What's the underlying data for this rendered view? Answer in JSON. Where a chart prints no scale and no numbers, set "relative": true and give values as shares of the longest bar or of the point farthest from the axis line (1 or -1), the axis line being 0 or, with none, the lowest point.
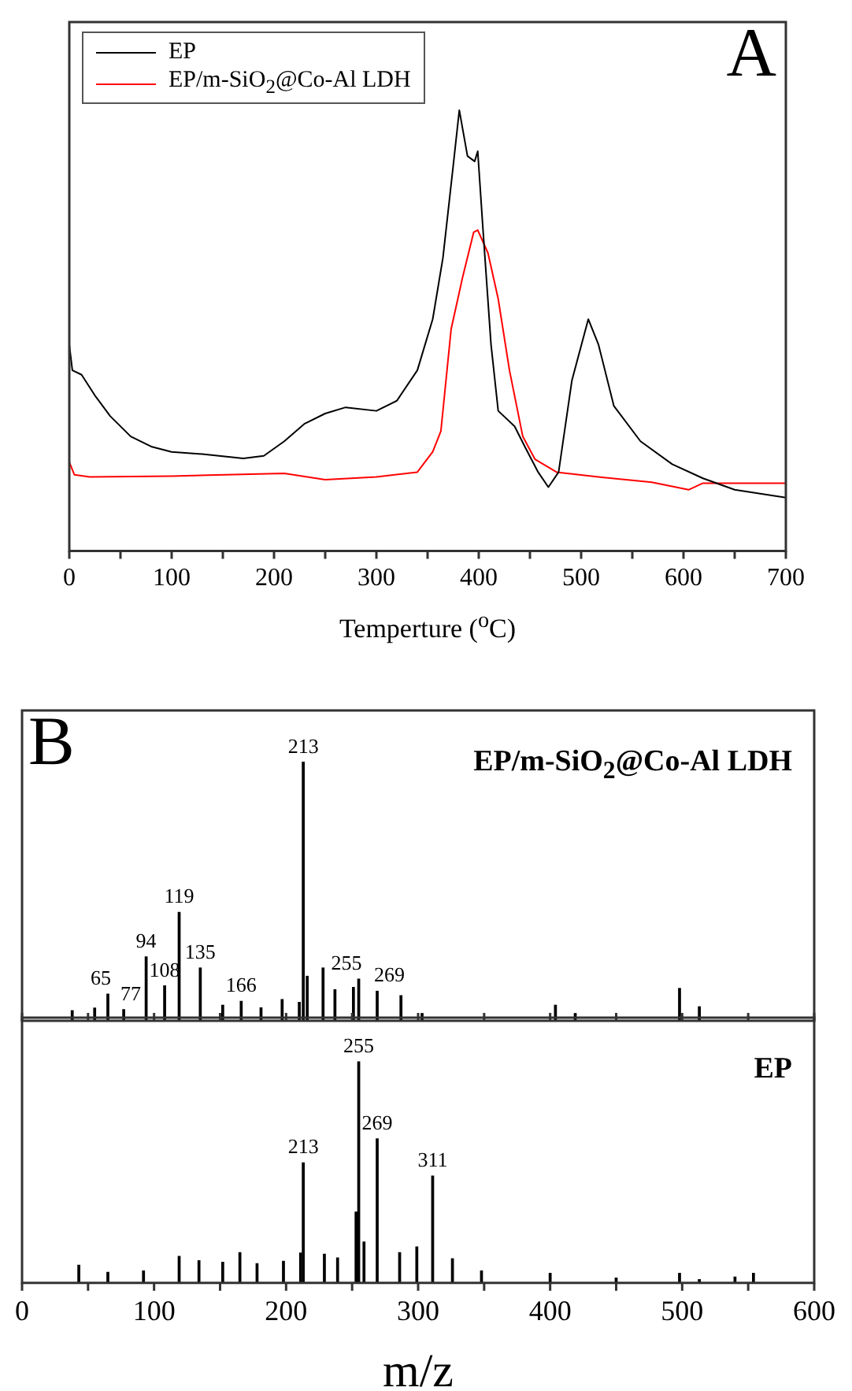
{
  "chart_data": [
    {
      "type": "line",
      "relative": true,
      "xlabel": "Temperture ($^{o}$C)",
      "xlim": [
        0,
        700
      ],
      "xticks": [
        0,
        {
          "value": 50,
          "label": null
        },
        100,
        {
          "value": 150,
          "label": null
        },
        200,
        {
          "value": 250,
          "label": null
        },
        300,
        {
          "value": 350,
          "label": null
        },
        400,
        {
          "value": 450,
          "label": null
        },
        500,
        {
          "value": 550,
          "label": null
        },
        600,
        {
          "value": 650,
          "label": null
        },
        700
      ],
      "legend": "top left",
      "annotations": [
        "A"
      ],
      "series": [
        {
          "name": "EP",
          "color": "#000000",
          "x": [
            0,
            3,
            12,
            25,
            40,
            60,
            80,
            100,
            130,
            170,
            190,
            210,
            230,
            250,
            270,
            300,
            320,
            340,
            355,
            365,
            375,
            381,
            389,
            396,
            399,
            404,
            412,
            419,
            435,
            445,
            458,
            468,
            478,
            491,
            507,
            517,
            532,
            558,
            589,
            619,
            650,
            700
          ],
          "values": [
            0.468,
            0.41,
            0.4,
            0.353,
            0.306,
            0.26,
            0.237,
            0.225,
            0.22,
            0.21,
            0.216,
            0.249,
            0.289,
            0.312,
            0.326,
            0.318,
            0.341,
            0.41,
            0.526,
            0.665,
            0.873,
            1.0,
            0.896,
            0.884,
            0.907,
            0.734,
            0.468,
            0.318,
            0.283,
            0.237,
            0.179,
            0.145,
            0.179,
            0.387,
            0.526,
            0.468,
            0.329,
            0.249,
            0.197,
            0.165,
            0.139,
            0.121
          ]
        },
        {
          "name": "EP/m-SiO$_{2}$@Co-Al LDH",
          "color": "#ff0000",
          "x": [
            0,
            5,
            20,
            100,
            210,
            250,
            300,
            340,
            355,
            363,
            373,
            384,
            395,
            399,
            409,
            419,
            430,
            443,
            455,
            476,
            517,
            569,
            605,
            619,
            650,
            700
          ],
          "values": [
            0.202,
            0.173,
            0.168,
            0.17,
            0.176,
            0.162,
            0.168,
            0.179,
            0.225,
            0.272,
            0.503,
            0.619,
            0.723,
            0.728,
            0.676,
            0.572,
            0.41,
            0.26,
            0.208,
            0.179,
            0.168,
            0.156,
            0.139,
            0.154,
            0.154,
            0.154
          ]
        }
      ]
    },
    {
      "type": "bar",
      "relative": true,
      "xlim": [
        0,
        600
      ],
      "xticks": [
        0,
        {
          "value": 50,
          "label": null
        },
        100,
        {
          "value": 150,
          "label": null
        },
        200,
        {
          "value": 250,
          "label": null
        },
        300,
        {
          "value": 350,
          "label": null
        },
        400,
        {
          "value": 450,
          "label": null
        },
        500,
        {
          "value": 550,
          "label": null
        },
        600
      ],
      "tick_labels": false,
      "annotations": [
        "B",
        {
          "text": "65",
          "x": 65,
          "y": 0.103
        },
        {
          "text": "77",
          "x": 77,
          "y": 0.043
        },
        {
          "text": "94",
          "x": 94,
          "y": 0.247
        },
        {
          "text": "108",
          "x": 108,
          "y": 0.135
        },
        {
          "text": "119",
          "x": 119,
          "y": 0.419
        },
        {
          "text": "135",
          "x": 135,
          "y": 0.204
        },
        {
          "text": "166",
          "x": 166,
          "y": 0.075
        },
        {
          "text": "213",
          "x": 213,
          "y": 1
        },
        {
          "text": "255",
          "x": 255,
          "y": 0.161
        },
        {
          "text": "269",
          "x": 269,
          "y": 0.114
        }
      ],
      "series": [
        {
          "name": "EP/m-SiO$_{2}$@Co-Al LDH",
          "color": "#000000",
          "x": [
            38,
            55,
            65,
            77,
            94,
            108,
            119,
            135,
            152,
            166,
            181,
            197,
            210,
            213,
            216,
            228,
            237,
            251,
            255,
            269,
            287,
            303,
            404,
            419,
            498,
            513
          ],
          "values": [
            0.039,
            0.049,
            0.103,
            0.043,
            0.247,
            0.135,
            0.419,
            0.204,
            0.06,
            0.075,
            0.05,
            0.082,
            0.071,
            1,
            0.172,
            0.204,
            0.12,
            0.129,
            0.161,
            0.114,
            0.097,
            0.028,
            0.06,
            0.028,
            0.125,
            0.054
          ]
        }
      ]
    },
    {
      "type": "bar",
      "relative": true,
      "xlabel": "m/z",
      "xlim": [
        0,
        600
      ],
      "xticks": [
        0,
        {
          "value": 50,
          "label": null
        },
        100,
        {
          "value": 150,
          "label": null
        },
        200,
        {
          "value": 250,
          "label": null
        },
        300,
        {
          "value": 350,
          "label": null
        },
        400,
        {
          "value": 450,
          "label": null
        },
        500,
        {
          "value": 550,
          "label": null
        },
        600
      ],
      "annotations": [
        {
          "text": "213",
          "x": 213,
          "y": 0.543
        },
        {
          "text": "255",
          "x": 255,
          "y": 1
        },
        {
          "text": "269",
          "x": 269,
          "y": 0.652
        },
        {
          "text": "311",
          "x": 311,
          "y": 0.483
        }
      ],
      "series": [
        {
          "name": "EP",
          "color": "#000000",
          "x": [
            43,
            65,
            92,
            119,
            134,
            152,
            165,
            178,
            198,
            211,
            213,
            229,
            239,
            253,
            255,
            259,
            269,
            286,
            299,
            311,
            326,
            348,
            400,
            450,
            498,
            513,
            540,
            554
          ],
          "values": [
            0.08,
            0.048,
            0.054,
            0.12,
            0.1,
            0.093,
            0.137,
            0.087,
            0.098,
            0.135,
            0.543,
            0.13,
            0.113,
            0.32,
            1,
            0.185,
            0.652,
            0.137,
            0.163,
            0.483,
            0.109,
            0.054,
            0.043,
            0.022,
            0.043,
            0.015,
            0.026,
            0.043
          ]
        }
      ]
    }
  ]
}
